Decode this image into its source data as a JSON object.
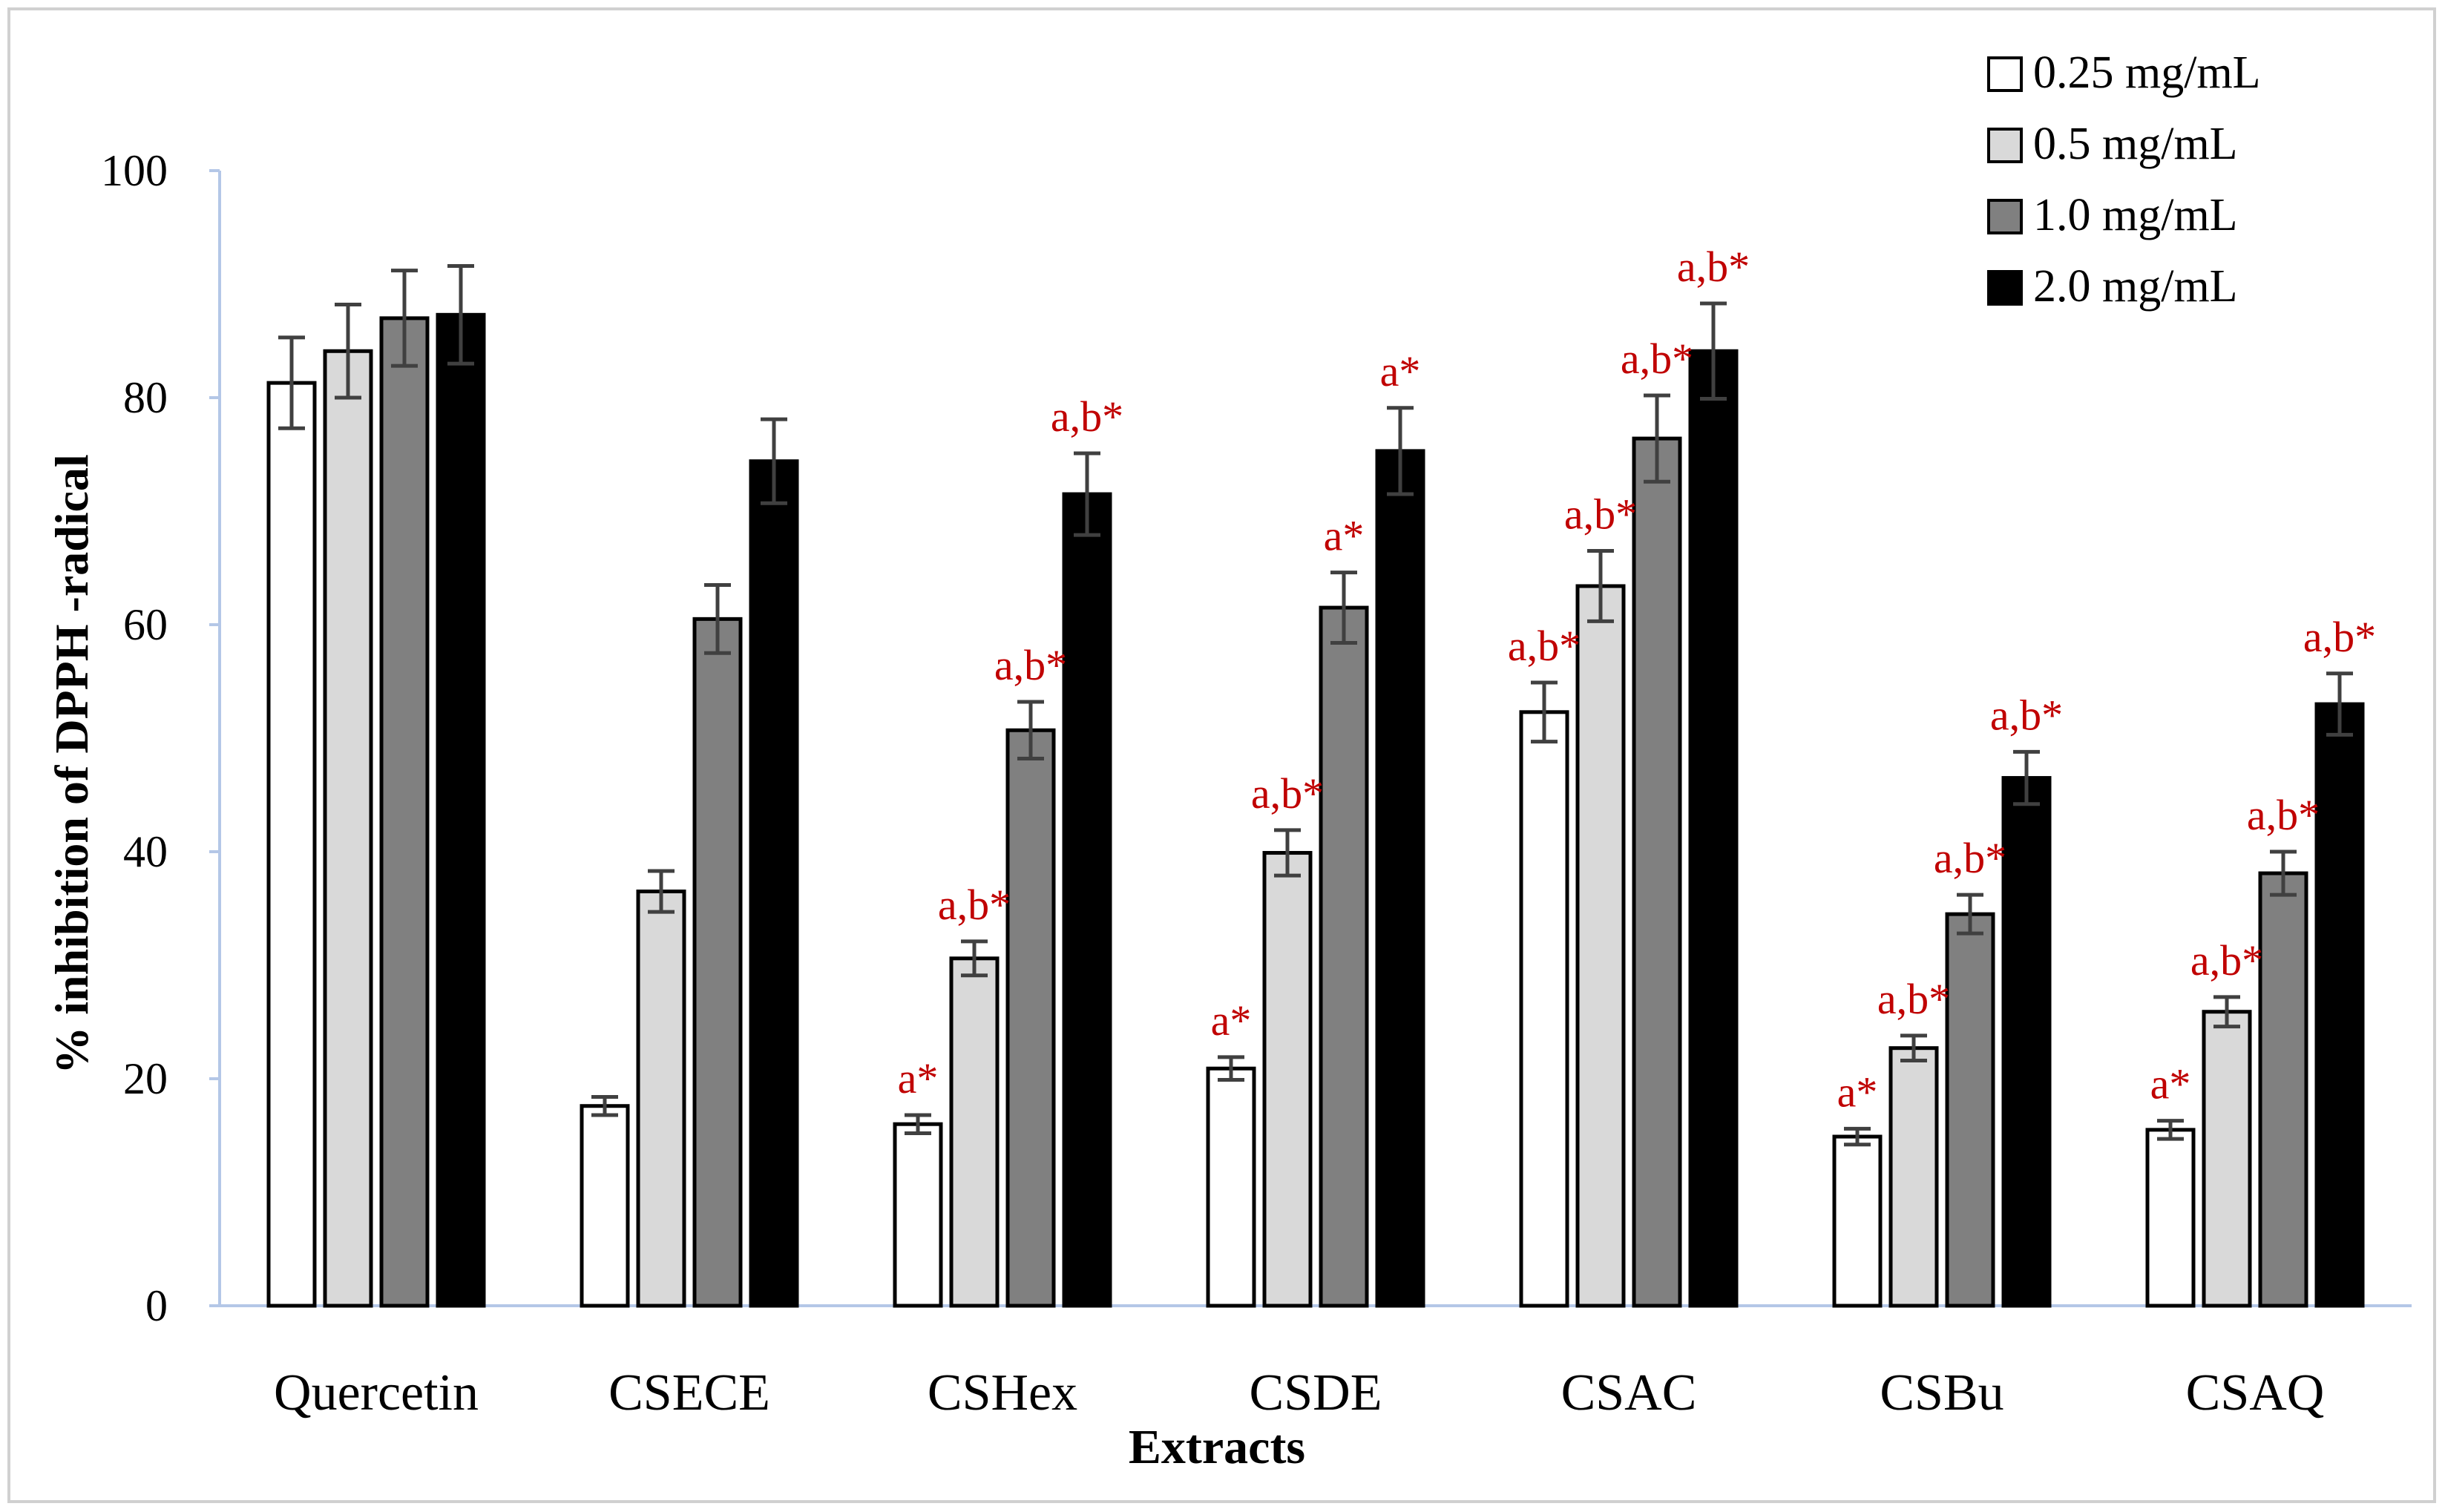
{
  "chart_data": {
    "type": "bar",
    "title": "",
    "xlabel": "Extracts",
    "ylabel": "% inhibition of DPPH -radical",
    "ylim": [
      0,
      100
    ],
    "yticks": [
      0,
      20,
      40,
      60,
      80,
      100
    ],
    "legend_position": "top-right",
    "categories": [
      "Quercetin",
      "CSECE",
      "CSHex",
      "CSDE",
      "CSAC",
      "CSBu",
      "CSAQ"
    ],
    "series": [
      {
        "name": "0.25 mg/mL",
        "color": "#ffffff",
        "values": [
          81.3,
          17.6,
          16.0,
          20.9,
          52.3,
          14.9,
          15.5
        ],
        "errors": [
          4.0,
          0.8,
          0.8,
          1.0,
          2.6,
          0.7,
          0.8
        ],
        "annotations": [
          "",
          "",
          "a*",
          "a*",
          "a,b*",
          "a*",
          "a*"
        ]
      },
      {
        "name": "0.5 mg/mL",
        "color": "#d9d9d9",
        "values": [
          84.1,
          36.5,
          30.6,
          39.9,
          63.4,
          22.7,
          25.9
        ],
        "errors": [
          4.1,
          1.8,
          1.5,
          2.0,
          3.1,
          1.1,
          1.3
        ],
        "annotations": [
          "",
          "",
          "a,b*",
          "a,b*",
          "a,b*",
          "a,b*",
          "a,b*"
        ]
      },
      {
        "name": "1.0 mg/mL",
        "color": "#808080",
        "values": [
          87.0,
          60.5,
          50.7,
          61.5,
          76.4,
          34.5,
          38.1
        ],
        "errors": [
          4.2,
          3.0,
          2.5,
          3.1,
          3.8,
          1.7,
          1.9
        ],
        "annotations": [
          "",
          "",
          "a,b*",
          "a*",
          "a,b*",
          "a,b*",
          "a,b*"
        ]
      },
      {
        "name": "2.0 mg/mL",
        "color": "#000000",
        "values": [
          87.3,
          74.4,
          71.5,
          75.3,
          84.1,
          46.5,
          53.0
        ],
        "errors": [
          4.3,
          3.7,
          3.6,
          3.8,
          4.2,
          2.3,
          2.7
        ],
        "annotations": [
          "",
          "",
          "a,b*",
          "a*",
          "a,b*",
          "a,b*",
          "a,b*"
        ]
      }
    ],
    "annotation_color": "#c00000"
  }
}
